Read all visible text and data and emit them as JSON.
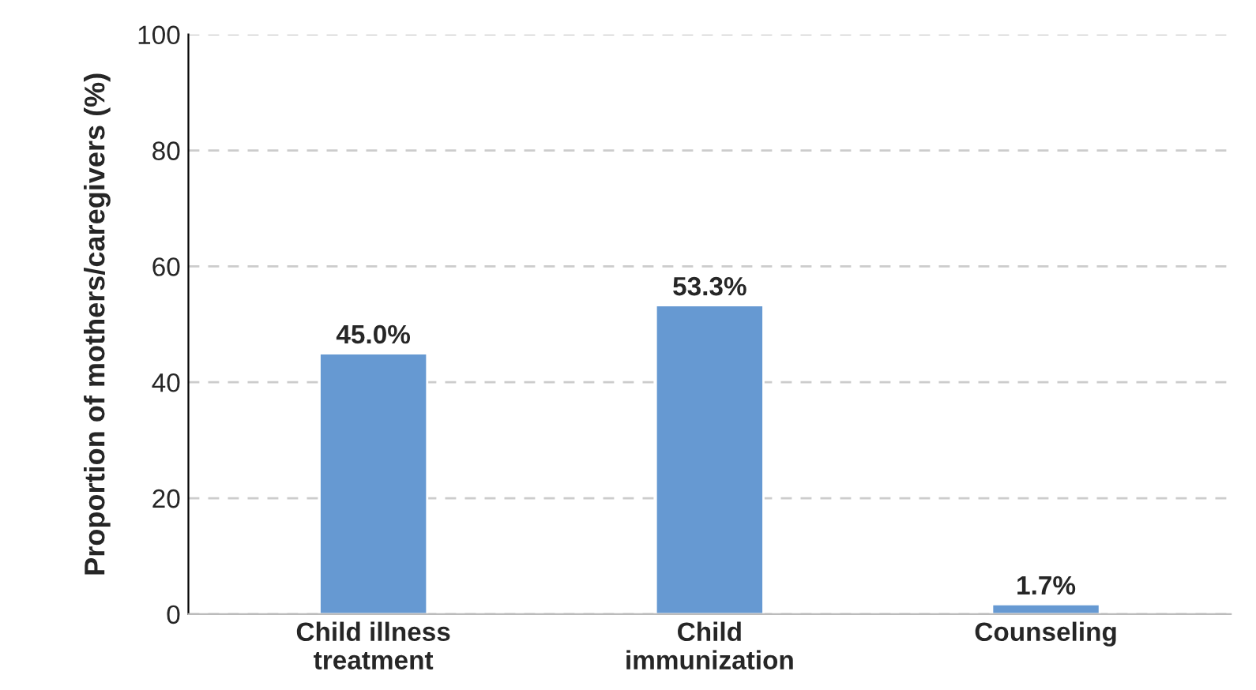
{
  "chart_data": {
    "type": "bar",
    "ylabel": "Proportion of mothers/caregivers (%)",
    "categories": [
      "Child illness\ntreatment",
      "Child\nimmunization",
      "Counseling"
    ],
    "values": [
      45.0,
      53.3,
      1.7
    ],
    "value_labels": [
      "45.0%",
      "53.3%",
      "1.7%"
    ],
    "color": "#6699d2",
    "ylim": [
      0,
      100
    ],
    "yticks": [
      0,
      20,
      40,
      60,
      80,
      100
    ],
    "grid": "y",
    "legend": false
  }
}
